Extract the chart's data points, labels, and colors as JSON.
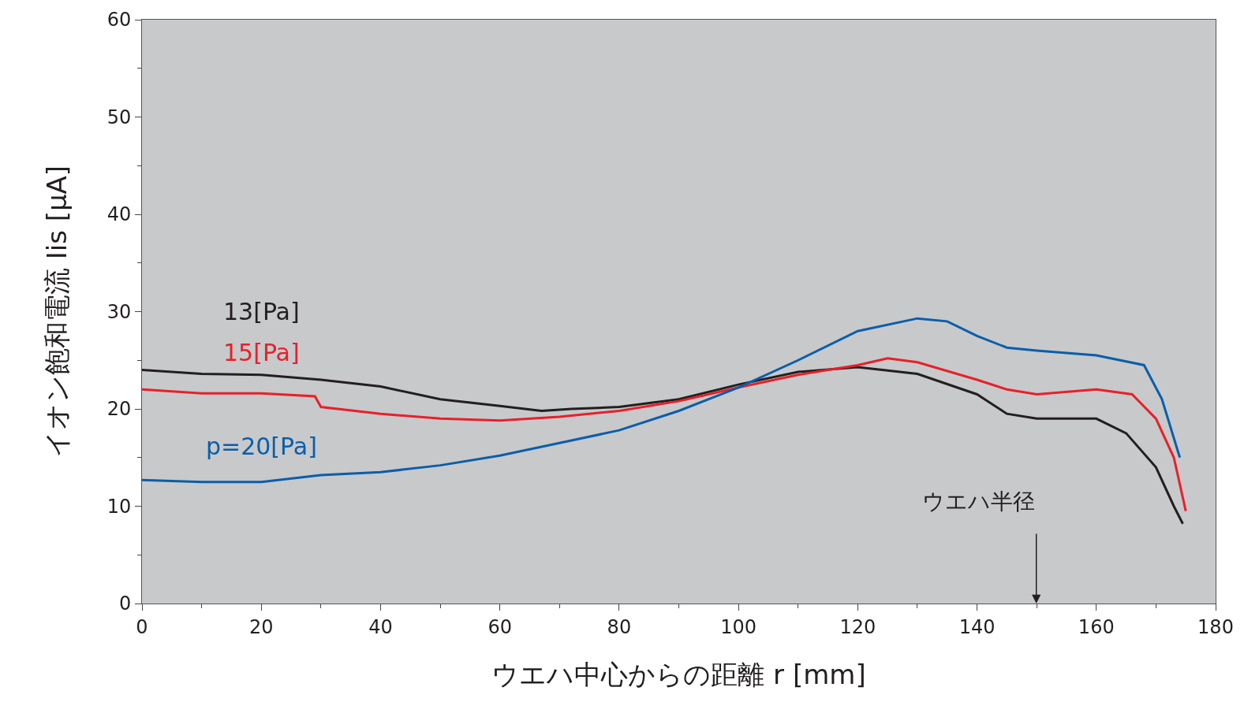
{
  "chart_data": {
    "type": "line",
    "xlabel": "ウエハ中心からの距離 r [mm]",
    "ylabel": "イオン飽和電流 Iis [μA]",
    "xlim": [
      0,
      180
    ],
    "xticks": [
      0,
      20,
      40,
      60,
      80,
      100,
      120,
      140,
      160,
      180
    ],
    "ylim": [
      0,
      60
    ],
    "yticks": [
      0,
      10,
      20,
      30,
      40,
      50,
      60
    ],
    "grid": false,
    "legend": false,
    "marker": "none",
    "line_style": "solid",
    "series": [
      {
        "name": "13[Pa]",
        "color": "#231f20",
        "x": [
          0,
          10,
          20,
          30,
          40,
          50,
          60,
          67,
          72,
          80,
          90,
          100,
          110,
          120,
          130,
          140,
          145,
          150,
          160,
          165,
          170,
          173,
          174.5
        ],
        "values": [
          24,
          23.6,
          23.5,
          23,
          22.3,
          21,
          20.3,
          19.8,
          20,
          20.2,
          21,
          22.5,
          23.8,
          24.3,
          23.6,
          21.5,
          19.5,
          19,
          19,
          17.5,
          14,
          10,
          8.2
        ]
      },
      {
        "name": "15[Pa]",
        "color": "#e8202a",
        "x": [
          0,
          10,
          20,
          29,
          30,
          40,
          50,
          60,
          70,
          80,
          90,
          100,
          110,
          120,
          125,
          130,
          140,
          145,
          150,
          160,
          166,
          170,
          173,
          175
        ],
        "values": [
          22,
          21.6,
          21.6,
          21.3,
          20.2,
          19.5,
          19,
          18.8,
          19.2,
          19.8,
          20.8,
          22.2,
          23.5,
          24.5,
          25.2,
          24.8,
          23,
          22,
          21.5,
          22,
          21.5,
          19,
          15,
          9.5
        ]
      },
      {
        "name": "p=20[Pa]",
        "color": "#0a5eaa",
        "x": [
          0,
          10,
          20,
          30,
          40,
          50,
          60,
          70,
          80,
          90,
          100,
          110,
          120,
          130,
          135,
          140,
          145,
          150,
          160,
          168,
          171,
          174
        ],
        "values": [
          12.7,
          12.5,
          12.5,
          13.2,
          13.5,
          14.2,
          15.2,
          16.5,
          17.8,
          19.8,
          22.2,
          25,
          28,
          29.3,
          29,
          27.5,
          26.3,
          26,
          25.5,
          24.5,
          21,
          15
        ]
      }
    ],
    "annotations": [
      "ウエハ半径"
    ]
  }
}
